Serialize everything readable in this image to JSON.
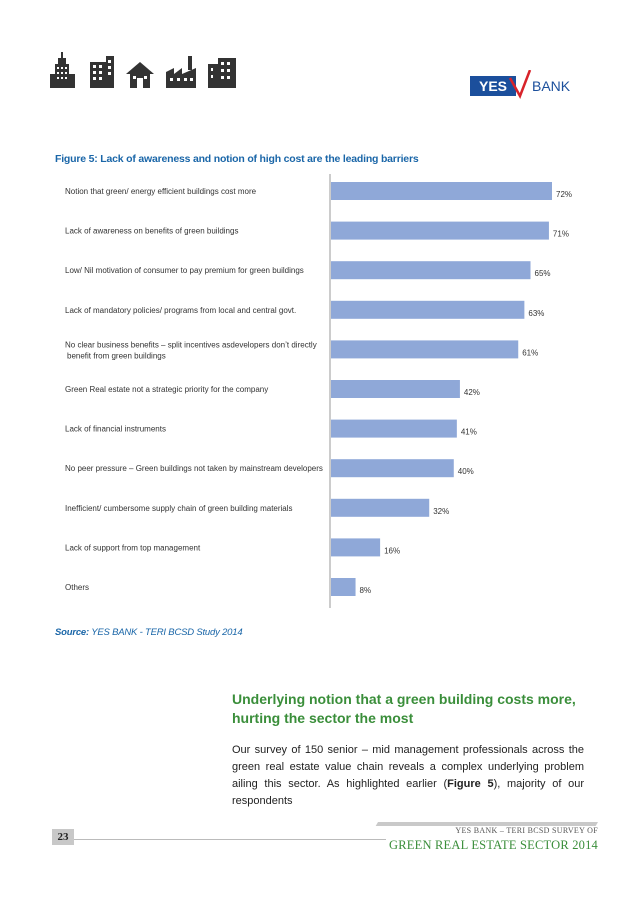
{
  "header": {
    "icons": [
      "skyscraper-icon",
      "office-building-icon",
      "house-icon",
      "factory-icon",
      "apartment-building-icon"
    ],
    "logo": {
      "left_text": "YES",
      "right_text": "BANK",
      "brand_blue": "#1b4f9c",
      "brand_red": "#d8232a"
    }
  },
  "figure": {
    "title": "Figure 5: Lack of awareness and notion of high cost are the leading barriers",
    "source_label": "Source:",
    "source_text": "YES BANK - TERI BCSD Study 2014"
  },
  "chart_data": {
    "type": "bar",
    "orientation": "horizontal",
    "bar_color": "#8fa8d8",
    "categories": [
      [
        "Notion that green/ energy efficient buildings cost more"
      ],
      [
        "Lack of awareness on benefits of green buildings"
      ],
      [
        "Low/ Nil motivation of consumer to pay premium for green buildings"
      ],
      [
        "Lack of mandatory policies/ programs from local and central govt."
      ],
      [
        "No clear business benefits – split incentives asdevelopers don’t directly",
        "benefit from green buildings"
      ],
      [
        "Green Real estate not a strategic priority for the company"
      ],
      [
        "Lack of financial instruments"
      ],
      [
        "No peer pressure – Green buildings not taken by mainstream developers"
      ],
      [
        "Inefficient/ cumbersome supply chain of green building materials"
      ],
      [
        "Lack of support from top management"
      ],
      [
        "Others"
      ]
    ],
    "values": [
      72,
      71,
      65,
      63,
      61,
      42,
      41,
      40,
      32,
      16,
      8
    ],
    "value_labels": [
      "72%",
      "71%",
      "65%",
      "63%",
      "61%",
      "42%",
      "41%",
      "40%",
      "32%",
      "16%",
      "8%"
    ],
    "xlim": [
      0,
      80
    ]
  },
  "section": {
    "heading": "Underlying notion that a green building costs more, hurting the sector the most",
    "body_part1": "Our survey of 150 senior – mid management professionals across the green real estate value chain reveals a complex underlying problem ailing this sector. As highlighted earlier (",
    "body_bold": "Figure 5",
    "body_part2": "), majority of our respondents"
  },
  "footer": {
    "page_number": "23",
    "line1": "YES BANK – TERI BCSD SURVEY OF",
    "line2": "GREEN REAL ESTATE SECTOR 2014"
  }
}
